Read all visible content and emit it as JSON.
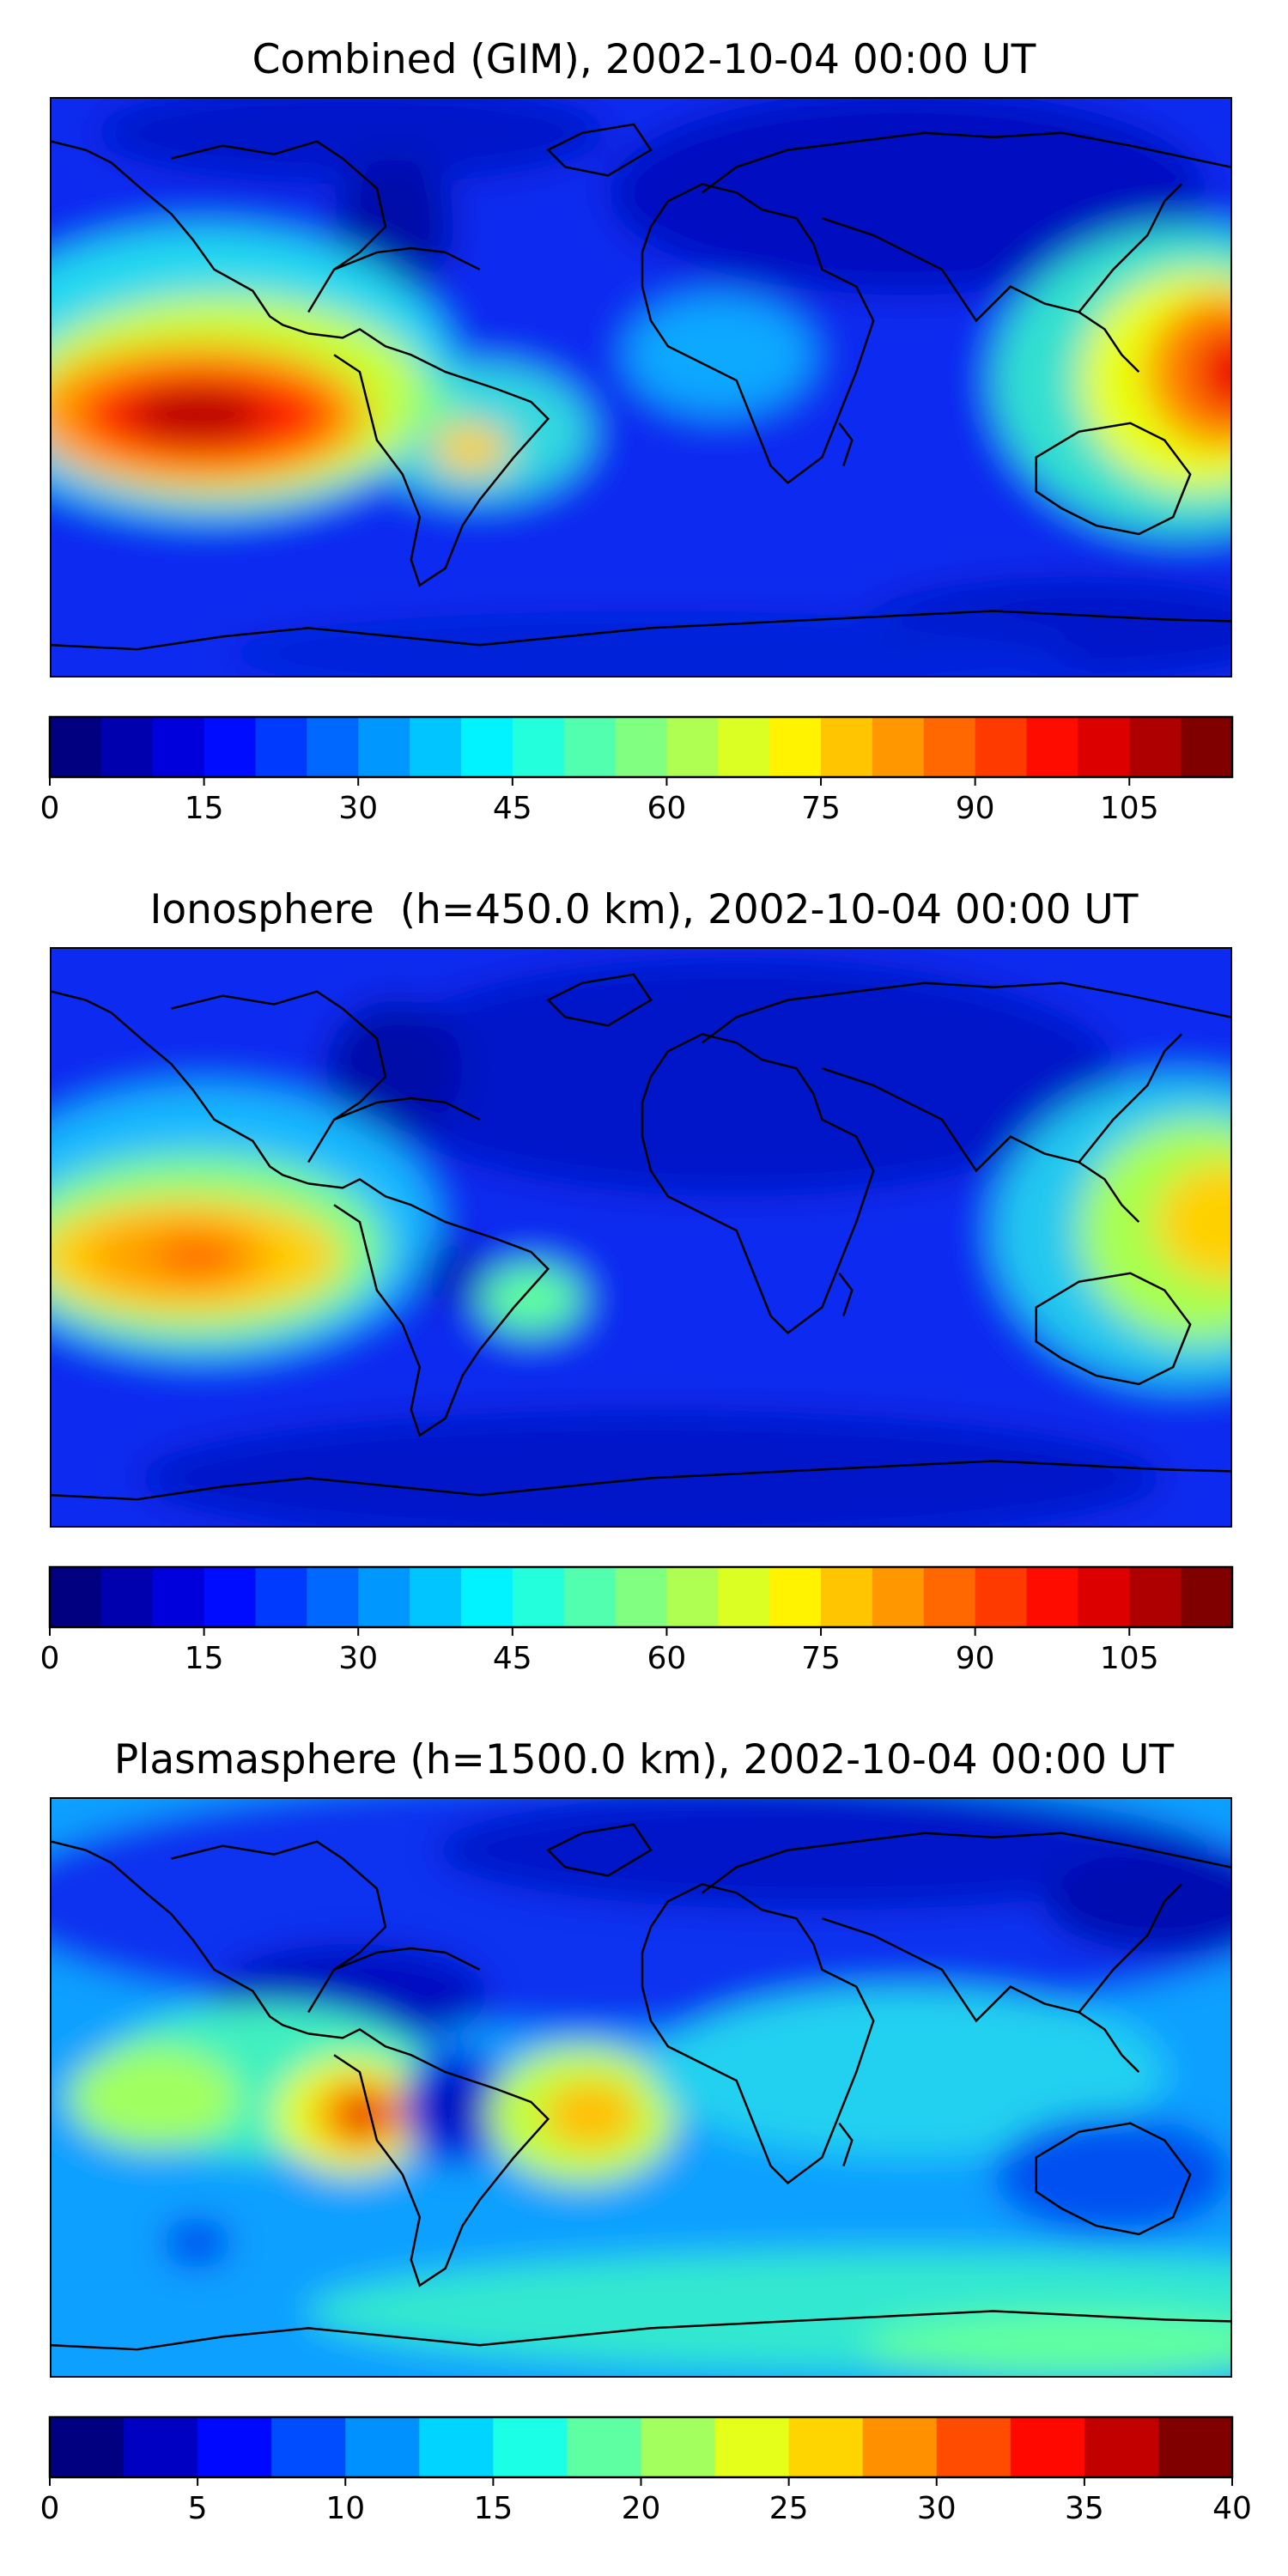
{
  "panels": [
    {
      "id": "combined",
      "title": "Combined (GIM), 2002-10-04 00:00 UT",
      "colorbar": {
        "min": 0,
        "max": 115,
        "levels": 23,
        "ticks": [
          0,
          15,
          30,
          45,
          60,
          75,
          90,
          105
        ],
        "tick_labels": [
          "0",
          "15",
          "30",
          "45",
          "60",
          "75",
          "90",
          "105"
        ]
      }
    },
    {
      "id": "ionosphere",
      "title": "Ionosphere  (h=450.0 km), 2002-10-04 00:00 UT",
      "colorbar": {
        "min": 0,
        "max": 115,
        "levels": 23,
        "ticks": [
          0,
          15,
          30,
          45,
          60,
          75,
          90,
          105
        ],
        "tick_labels": [
          "0",
          "15",
          "30",
          "45",
          "60",
          "75",
          "90",
          "105"
        ]
      }
    },
    {
      "id": "plasmasphere",
      "title": "Plasmasphere (h=1500.0 km), 2002-10-04 00:00 UT",
      "colorbar": {
        "min": 0,
        "max": 40,
        "levels": 16,
        "ticks": [
          0,
          5,
          10,
          15,
          20,
          25,
          30,
          35,
          40
        ],
        "tick_labels": [
          "0",
          "5",
          "10",
          "15",
          "20",
          "25",
          "30",
          "35",
          "40"
        ]
      }
    }
  ],
  "colormap": "jet"
}
